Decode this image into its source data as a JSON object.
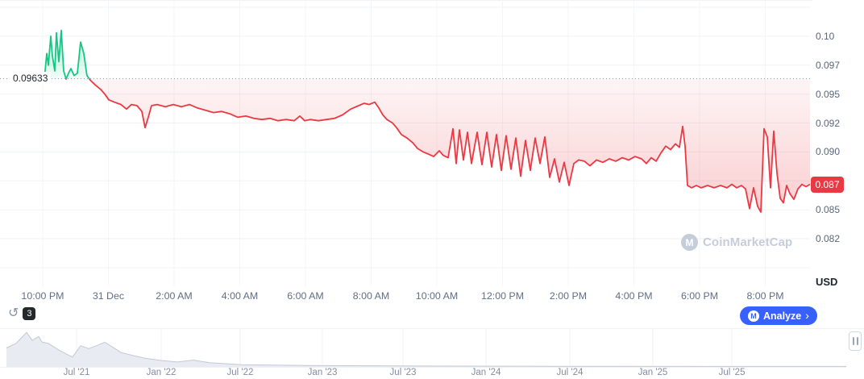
{
  "meta": {
    "background": "#ffffff",
    "accent_green": "#16c784",
    "accent_red": "#ea3943",
    "accent_blue": "#3861fb",
    "grid_color": "#eff2f5",
    "axis_text_color": "#616e85",
    "watermark_color": "#c6cdda"
  },
  "watermark": {
    "text": "CoinMarketCap",
    "logo_letter": "M"
  },
  "toolbar": {
    "history": {
      "icon_glyph": "↺",
      "count": "3"
    },
    "analyze": {
      "logo_letter": "M",
      "label": "Analyze",
      "chevron": "›"
    }
  },
  "chart_data": [
    {
      "type": "line",
      "variant": "baseline-area",
      "title": "",
      "xlabel": "",
      "ylabel": "",
      "baseline": {
        "value": 0.09633,
        "label": "0.09633"
      },
      "current_price": {
        "value": 0.0872,
        "label": "0.087"
      },
      "colors": {
        "above": "#16c784",
        "below": "#ea3943",
        "baseline": "#848e9c",
        "grid": "#eff2f5",
        "vgrid": "#f3f5f9"
      },
      "y_axis": {
        "unit_label": "USD",
        "min": 0.07839,
        "max": 0.10313,
        "ticks": [
          {
            "label": "",
            "value": 0.1025
          },
          {
            "label": "0.10",
            "value": 0.1
          },
          {
            "label": "0.097",
            "value": 0.0975
          },
          {
            "label": "0.095",
            "value": 0.095
          },
          {
            "label": "0.092",
            "value": 0.0925
          },
          {
            "label": "0.090",
            "value": 0.09
          },
          {
            "label": "",
            "value": 0.0875
          },
          {
            "label": "0.085",
            "value": 0.085
          },
          {
            "label": "0.082",
            "value": 0.0825
          },
          {
            "label": "",
            "value": 0.08
          }
        ]
      },
      "x_axis": {
        "ticks": [
          {
            "label": "10:00 PM",
            "pos": 0.0527
          },
          {
            "label": "31 Dec",
            "pos": 0.1338
          },
          {
            "label": "2:00 AM",
            "pos": 0.2149
          },
          {
            "label": "4:00 AM",
            "pos": 0.296
          },
          {
            "label": "6:00 AM",
            "pos": 0.3771
          },
          {
            "label": "8:00 AM",
            "pos": 0.4582
          },
          {
            "label": "10:00 AM",
            "pos": 0.5393
          },
          {
            "label": "12:00 PM",
            "pos": 0.6204
          },
          {
            "label": "2:00 PM",
            "pos": 0.7015
          },
          {
            "label": "4:00 PM",
            "pos": 0.7826
          },
          {
            "label": "6:00 PM",
            "pos": 0.8637
          },
          {
            "label": "8:00 PM",
            "pos": 0.9448
          }
        ]
      },
      "series": [
        {
          "name": "price",
          "points": [
            [
              0.0547,
              0.0963
            ],
            [
              0.0577,
              0.0985
            ],
            [
              0.0597,
              0.0975
            ],
            [
              0.0627,
              0.1
            ],
            [
              0.0647,
              0.0983
            ],
            [
              0.0677,
              0.097
            ],
            [
              0.0697,
              0.1003
            ],
            [
              0.0726,
              0.0978
            ],
            [
              0.0756,
              0.1005
            ],
            [
              0.0786,
              0.097
            ],
            [
              0.0816,
              0.0963
            ],
            [
              0.0846,
              0.0968
            ],
            [
              0.0876,
              0.0972
            ],
            [
              0.0915,
              0.0966
            ],
            [
              0.0955,
              0.0968
            ],
            [
              0.0995,
              0.0995
            ],
            [
              0.1035,
              0.0985
            ],
            [
              0.1074,
              0.0966
            ],
            [
              0.1114,
              0.0962
            ],
            [
              0.1174,
              0.0958
            ],
            [
              0.1244,
              0.0954
            ],
            [
              0.1294,
              0.095
            ],
            [
              0.1343,
              0.0945
            ],
            [
              0.1413,
              0.0943
            ],
            [
              0.1493,
              0.0941
            ],
            [
              0.1562,
              0.0937
            ],
            [
              0.1622,
              0.0941
            ],
            [
              0.1692,
              0.094
            ],
            [
              0.1751,
              0.0935
            ],
            [
              0.1791,
              0.0921
            ],
            [
              0.1831,
              0.093
            ],
            [
              0.1871,
              0.094
            ],
            [
              0.194,
              0.0941
            ],
            [
              0.204,
              0.0939
            ],
            [
              0.2139,
              0.0941
            ],
            [
              0.2239,
              0.0939
            ],
            [
              0.2338,
              0.0941
            ],
            [
              0.2438,
              0.0938
            ],
            [
              0.2537,
              0.0936
            ],
            [
              0.2637,
              0.0934
            ],
            [
              0.2736,
              0.0935
            ],
            [
              0.2836,
              0.0933
            ],
            [
              0.2935,
              0.093
            ],
            [
              0.3035,
              0.0931
            ],
            [
              0.3134,
              0.0929
            ],
            [
              0.3234,
              0.0928
            ],
            [
              0.3333,
              0.0929
            ],
            [
              0.3433,
              0.0927
            ],
            [
              0.3532,
              0.0928
            ],
            [
              0.3632,
              0.0927
            ],
            [
              0.3701,
              0.0931
            ],
            [
              0.3761,
              0.0927
            ],
            [
              0.3831,
              0.0928
            ],
            [
              0.393,
              0.0927
            ],
            [
              0.403,
              0.0928
            ],
            [
              0.4129,
              0.0929
            ],
            [
              0.4229,
              0.0932
            ],
            [
              0.4328,
              0.0937
            ],
            [
              0.4428,
              0.094
            ],
            [
              0.4497,
              0.0942
            ],
            [
              0.4557,
              0.0941
            ],
            [
              0.4627,
              0.0943
            ],
            [
              0.4677,
              0.0938
            ],
            [
              0.4726,
              0.0932
            ],
            [
              0.4776,
              0.0928
            ],
            [
              0.4846,
              0.0925
            ],
            [
              0.4896,
              0.0921
            ],
            [
              0.4955,
              0.0915
            ],
            [
              0.5025,
              0.0912
            ],
            [
              0.5095,
              0.0908
            ],
            [
              0.5154,
              0.0903
            ],
            [
              0.5224,
              0.09
            ],
            [
              0.5294,
              0.0898
            ],
            [
              0.5353,
              0.0896
            ],
            [
              0.5423,
              0.0901
            ],
            [
              0.5473,
              0.0897
            ],
            [
              0.5532,
              0.0895
            ],
            [
              0.5592,
              0.092
            ],
            [
              0.5632,
              0.089
            ],
            [
              0.5672,
              0.0919
            ],
            [
              0.5721,
              0.0893
            ],
            [
              0.5771,
              0.0917
            ],
            [
              0.5821,
              0.089
            ],
            [
              0.5891,
              0.0917
            ],
            [
              0.595,
              0.0889
            ],
            [
              0.601,
              0.0917
            ],
            [
              0.607,
              0.0887
            ],
            [
              0.6129,
              0.0915
            ],
            [
              0.6189,
              0.0884
            ],
            [
              0.6249,
              0.0914
            ],
            [
              0.6308,
              0.0885
            ],
            [
              0.6368,
              0.0912
            ],
            [
              0.6428,
              0.0879
            ],
            [
              0.6488,
              0.091
            ],
            [
              0.6547,
              0.0884
            ],
            [
              0.6607,
              0.0912
            ],
            [
              0.6667,
              0.089
            ],
            [
              0.6726,
              0.0913
            ],
            [
              0.6786,
              0.0878
            ],
            [
              0.6846,
              0.0894
            ],
            [
              0.6905,
              0.0874
            ],
            [
              0.6965,
              0.0891
            ],
            [
              0.7025,
              0.0871
            ],
            [
              0.7085,
              0.089
            ],
            [
              0.7144,
              0.0893
            ],
            [
              0.7214,
              0.0892
            ],
            [
              0.7284,
              0.0888
            ],
            [
              0.7363,
              0.0893
            ],
            [
              0.7443,
              0.0891
            ],
            [
              0.7522,
              0.0894
            ],
            [
              0.7602,
              0.0892
            ],
            [
              0.7682,
              0.0895
            ],
            [
              0.7761,
              0.0893
            ],
            [
              0.7841,
              0.0896
            ],
            [
              0.792,
              0.0894
            ],
            [
              0.798,
              0.089
            ],
            [
              0.804,
              0.0895
            ],
            [
              0.81,
              0.0892
            ],
            [
              0.8159,
              0.0899
            ],
            [
              0.8219,
              0.0905
            ],
            [
              0.8279,
              0.0902
            ],
            [
              0.8338,
              0.0907
            ],
            [
              0.8388,
              0.0904
            ],
            [
              0.8428,
              0.0922
            ],
            [
              0.8458,
              0.0905
            ],
            [
              0.8488,
              0.0871
            ],
            [
              0.8537,
              0.0869
            ],
            [
              0.8597,
              0.0871
            ],
            [
              0.8657,
              0.0869
            ],
            [
              0.8736,
              0.0871
            ],
            [
              0.8816,
              0.0869
            ],
            [
              0.8896,
              0.0871
            ],
            [
              0.8975,
              0.0869
            ],
            [
              0.9035,
              0.0872
            ],
            [
              0.9095,
              0.0869
            ],
            [
              0.9154,
              0.0871
            ],
            [
              0.9204,
              0.0868
            ],
            [
              0.9254,
              0.0851
            ],
            [
              0.9303,
              0.0869
            ],
            [
              0.9353,
              0.0853
            ],
            [
              0.9393,
              0.0848
            ],
            [
              0.9433,
              0.092
            ],
            [
              0.9473,
              0.0913
            ],
            [
              0.9512,
              0.0869
            ],
            [
              0.9552,
              0.0918
            ],
            [
              0.9592,
              0.0882
            ],
            [
              0.9632,
              0.086
            ],
            [
              0.9672,
              0.0856
            ],
            [
              0.9711,
              0.0871
            ],
            [
              0.9751,
              0.0864
            ],
            [
              0.9801,
              0.0859
            ],
            [
              0.9851,
              0.0868
            ],
            [
              0.99,
              0.0872
            ],
            [
              0.995,
              0.087
            ],
            [
              1.0,
              0.0872
            ]
          ]
        }
      ]
    },
    {
      "type": "area",
      "role": "overview-brush",
      "title": "",
      "colors": {
        "fill": "#e8ecf2",
        "line": "#c2cad6",
        "grid": "#eff2f5"
      },
      "ylim": [
        0,
        1
      ],
      "x_axis": {
        "ticks": [
          {
            "label": "Jul '21",
            "pos": 0.0905
          },
          {
            "label": "Jan '22",
            "pos": 0.1905
          },
          {
            "label": "Jul '22",
            "pos": 0.2838
          },
          {
            "label": "Jan '23",
            "pos": 0.381
          },
          {
            "label": "Jul '23",
            "pos": 0.4762
          },
          {
            "label": "Jan '24",
            "pos": 0.5743
          },
          {
            "label": "Jul '24",
            "pos": 0.6733
          },
          {
            "label": "Jan '25",
            "pos": 0.7714
          },
          {
            "label": "Jul '25",
            "pos": 0.8648
          }
        ]
      },
      "series": [
        {
          "name": "all-time-history",
          "points": [
            [
              0.0076,
              0.5
            ],
            [
              0.019,
              0.62
            ],
            [
              0.0314,
              0.91
            ],
            [
              0.0381,
              0.7
            ],
            [
              0.0457,
              0.8
            ],
            [
              0.0495,
              0.66
            ],
            [
              0.0571,
              0.62
            ],
            [
              0.0714,
              0.42
            ],
            [
              0.0857,
              0.26
            ],
            [
              0.0952,
              0.56
            ],
            [
              0.1048,
              0.48
            ],
            [
              0.1143,
              0.56
            ],
            [
              0.1238,
              0.65
            ],
            [
              0.1333,
              0.52
            ],
            [
              0.1429,
              0.38
            ],
            [
              0.1571,
              0.3
            ],
            [
              0.1714,
              0.23
            ],
            [
              0.1905,
              0.17
            ],
            [
              0.2095,
              0.13
            ],
            [
              0.2286,
              0.18
            ],
            [
              0.2476,
              0.11
            ],
            [
              0.2857,
              0.06
            ],
            [
              0.3333,
              0.045
            ],
            [
              0.381,
              0.035
            ],
            [
              0.4762,
              0.025
            ],
            [
              0.6667,
              0.018
            ],
            [
              0.8571,
              0.012
            ],
            [
              1.0,
              0.012
            ]
          ]
        }
      ]
    }
  ]
}
